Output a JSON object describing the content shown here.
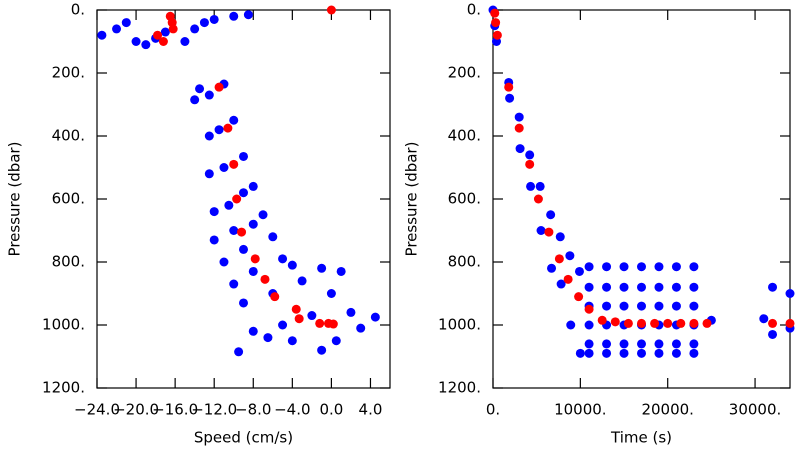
{
  "chart_data": [
    {
      "type": "scatter",
      "x_label": "Speed (cm/s)",
      "y_label": "Pressure (dbar)",
      "xlim": [
        -24,
        6
      ],
      "ylim": [
        0,
        1200
      ],
      "y_inverted": true,
      "xticks": [
        {
          "value": -24,
          "label": "−24.0"
        },
        {
          "value": -20,
          "label": "−20.0"
        },
        {
          "value": -16,
          "label": "−16.0"
        },
        {
          "value": -12,
          "label": "−12.0"
        },
        {
          "value": -8,
          "label": "−8.0"
        },
        {
          "value": -4,
          "label": "−4.0"
        },
        {
          "value": 0,
          "label": "0.0"
        },
        {
          "value": 4,
          "label": "4.0"
        }
      ],
      "yticks": [
        {
          "value": 0,
          "label": "0."
        },
        {
          "value": 200,
          "label": "200."
        },
        {
          "value": 400,
          "label": "400."
        },
        {
          "value": 600,
          "label": "600."
        },
        {
          "value": 800,
          "label": "800."
        },
        {
          "value": 1000,
          "label": "1000."
        },
        {
          "value": 1200,
          "label": "1200."
        }
      ],
      "series": [
        {
          "color": "#0000ff",
          "x": [
            -23.5,
            -22,
            -21,
            -20,
            -19,
            -18,
            -17,
            -15,
            -14,
            -13,
            -12,
            -10,
            -8.5,
            -13.5,
            -12.5,
            -11,
            -14,
            -12.5,
            -11.5,
            -10,
            -12.5,
            -11,
            -9,
            -12,
            -10.5,
            -9,
            -8,
            -12,
            -10,
            -8,
            -7,
            -11,
            -9,
            -6,
            -10,
            -8,
            -5,
            -4,
            -9,
            -6,
            -3,
            -1,
            -8,
            -5,
            -2,
            0,
            1,
            2,
            4.5,
            -1,
            -9.5,
            3,
            -4,
            0.5,
            -6.5
          ],
          "y": [
            80,
            60,
            40,
            100,
            110,
            90,
            70,
            100,
            60,
            40,
            30,
            20,
            15,
            250,
            270,
            235,
            285,
            400,
            380,
            350,
            520,
            500,
            465,
            640,
            620,
            580,
            560,
            730,
            700,
            680,
            650,
            800,
            760,
            720,
            870,
            830,
            790,
            810,
            930,
            900,
            860,
            820,
            1020,
            1000,
            970,
            900,
            830,
            960,
            975,
            1080,
            1085,
            1010,
            1050,
            1050,
            1040
          ]
        },
        {
          "color": "#ff0000",
          "x": [
            -16.5,
            -16.3,
            -16.2,
            -17.8,
            -17.2,
            -11.5,
            -10.6,
            -10,
            -9.7,
            -9.2,
            -7.8,
            -6.8,
            -5.8,
            -3.6,
            -3.3,
            -1.2,
            -0.3,
            0.2,
            0
          ],
          "y": [
            20,
            40,
            60,
            80,
            100,
            245,
            375,
            490,
            600,
            705,
            790,
            855,
            910,
            950,
            980,
            995,
            995,
            997,
            0
          ]
        }
      ]
    },
    {
      "type": "scatter",
      "x_label": "Time (s)",
      "y_label": "Pressure (dbar)",
      "xlim": [
        0,
        34000
      ],
      "ylim": [
        0,
        1200
      ],
      "y_inverted": true,
      "xticks": [
        {
          "value": 0,
          "label": "0."
        },
        {
          "value": 10000,
          "label": "10000."
        },
        {
          "value": 20000,
          "label": "20000."
        },
        {
          "value": 30000,
          "label": "30000."
        }
      ],
      "yticks": [
        {
          "value": 0,
          "label": "0."
        },
        {
          "value": 200,
          "label": "200."
        },
        {
          "value": 400,
          "label": "400."
        },
        {
          "value": 600,
          "label": "600."
        },
        {
          "value": 800,
          "label": "800."
        },
        {
          "value": 1000,
          "label": "1000."
        },
        {
          "value": 1200,
          "label": "1200."
        }
      ],
      "series": [
        {
          "color": "#0000ff",
          "x": [
            0,
            200,
            400,
            1800,
            1900,
            3000,
            3100,
            4200,
            4300,
            5400,
            5500,
            6600,
            6700,
            7700,
            7800,
            8800,
            8900,
            9900,
            10000,
            11000,
            11000,
            11000,
            11000,
            11000,
            11000,
            13000,
            13000,
            13000,
            13000,
            13000,
            13000,
            15000,
            15000,
            15000,
            15000,
            15000,
            15000,
            17000,
            17000,
            17000,
            17000,
            17000,
            17000,
            19000,
            19000,
            19000,
            19000,
            19000,
            19000,
            21000,
            21000,
            21000,
            21000,
            21000,
            21000,
            23000,
            23000,
            23000,
            23000,
            23000,
            23000,
            25000,
            32000,
            32000,
            31000,
            34000,
            34000
          ],
          "y": [
            0,
            50,
            100,
            230,
            280,
            340,
            440,
            460,
            560,
            560,
            700,
            650,
            820,
            720,
            870,
            780,
            1000,
            830,
            1090,
            815,
            880,
            940,
            1000,
            1060,
            1090,
            815,
            880,
            940,
            1000,
            1060,
            1090,
            815,
            880,
            940,
            1000,
            1060,
            1090,
            815,
            880,
            940,
            1000,
            1060,
            1090,
            815,
            880,
            940,
            1000,
            1060,
            1090,
            815,
            880,
            940,
            1000,
            1060,
            1090,
            815,
            880,
            940,
            1000,
            1060,
            1090,
            985,
            880,
            1030,
            980,
            900,
            1010
          ]
        },
        {
          "color": "#ff0000",
          "x": [
            200,
            300,
            500,
            1800,
            3000,
            4200,
            5200,
            6400,
            7600,
            8600,
            9800,
            11000,
            12500,
            14000,
            15500,
            17000,
            18500,
            20000,
            21500,
            23000,
            24500,
            32000,
            34000
          ],
          "y": [
            10,
            40,
            80,
            245,
            375,
            490,
            600,
            705,
            790,
            855,
            910,
            950,
            985,
            990,
            995,
            995,
            995,
            995,
            995,
            995,
            995,
            995,
            995
          ]
        }
      ]
    }
  ]
}
